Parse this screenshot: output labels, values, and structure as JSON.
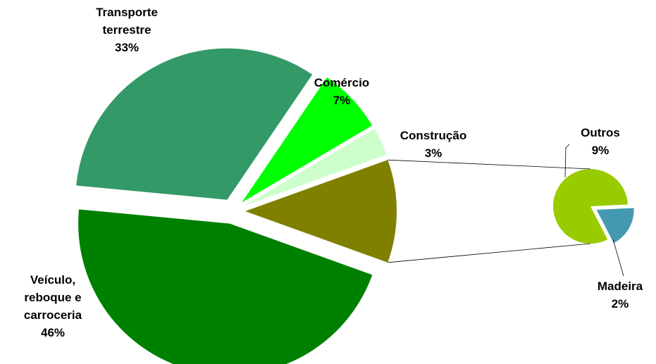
{
  "chart_data": {
    "type": "pie-of-pie",
    "categories": [
      "Transporte terrestre",
      "Comércio",
      "Construção",
      "Veículo, reboque e carroceria"
    ],
    "values": [
      33,
      7,
      3,
      46
    ],
    "value_labels": [
      "33%",
      "7%",
      "3%",
      "46%"
    ],
    "colors": [
      "#339966",
      "#00ff00",
      "#ccffcc",
      "#008000"
    ],
    "secondary": {
      "categories": [
        "Outros",
        "Madeira"
      ],
      "values": [
        9,
        2
      ],
      "value_labels": [
        "9%",
        "2%"
      ],
      "colors": [
        "#99cc00",
        "#4499b0"
      ]
    },
    "other_color": "#808000"
  }
}
